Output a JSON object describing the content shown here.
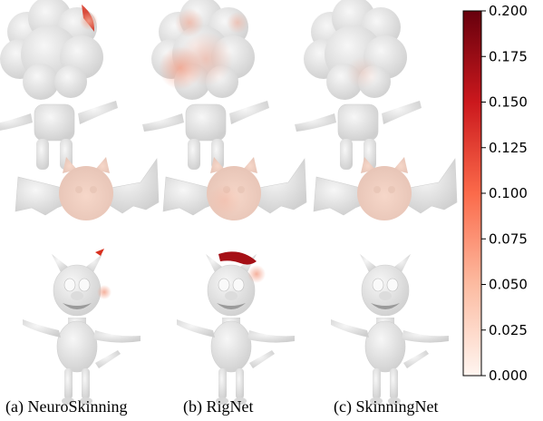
{
  "columns": [
    {
      "caption": "(a) NeuroSkinning"
    },
    {
      "caption": "(b) RigNet"
    },
    {
      "caption": "(c) SkinningNet"
    }
  ],
  "colorbar": {
    "min": 0.0,
    "max": 0.2,
    "ticks": [
      "0.200",
      "0.175",
      "0.150",
      "0.125",
      "0.100",
      "0.075",
      "0.050",
      "0.025",
      "0.000"
    ],
    "colormap": "Reds",
    "color_low": "#fff5f0",
    "color_mid": "#fb6a4a",
    "color_high": "#67000d"
  },
  "colors": {
    "mesh_base": "#ececec",
    "mesh_shadow": "#c9c9c9"
  }
}
